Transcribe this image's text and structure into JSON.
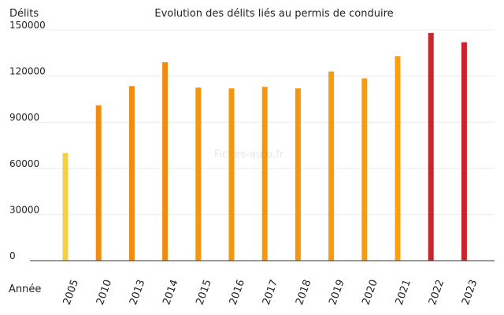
{
  "chart_data": {
    "type": "bar",
    "title": "Evolution des délits liés au permis de conduire",
    "ylabel": "Délits",
    "xlabel": "Année",
    "watermark": "Fiches-auto.fr",
    "ylim": [
      0,
      150000
    ],
    "yticks": [
      0,
      30000,
      60000,
      90000,
      120000,
      150000
    ],
    "ytick_labels": [
      "0",
      "30000",
      "60000",
      "90000",
      "120000",
      "150000"
    ],
    "grid": true,
    "categories": [
      "2005",
      "2010",
      "2013",
      "2014",
      "2015",
      "2016",
      "2017",
      "2018",
      "2019",
      "2020",
      "2021",
      "2022",
      "2023"
    ],
    "values": [
      70000,
      101000,
      113500,
      129000,
      112500,
      112000,
      113000,
      112000,
      123000,
      118500,
      133000,
      148000,
      142000
    ],
    "colors": [
      "#f2d04a",
      "#f08c10",
      "#f08c10",
      "#f08c10",
      "#f5960f",
      "#f5960f",
      "#f5960f",
      "#f5960f",
      "#f79b10",
      "#f79b10",
      "#f9a010",
      "#c8242c",
      "#c8242c"
    ]
  }
}
